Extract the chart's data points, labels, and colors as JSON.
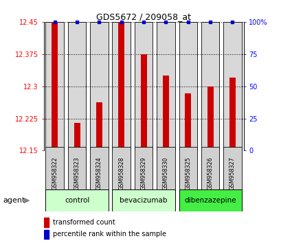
{
  "title": "GDS5672 / 209058_at",
  "samples": [
    "GSM958322",
    "GSM958323",
    "GSM958324",
    "GSM958328",
    "GSM958329",
    "GSM958330",
    "GSM958325",
    "GSM958326",
    "GSM958327"
  ],
  "red_values": [
    12.45,
    12.215,
    12.262,
    12.45,
    12.375,
    12.325,
    12.283,
    12.3,
    12.32
  ],
  "blue_values": [
    100,
    100,
    100,
    100,
    100,
    100,
    100,
    100,
    100
  ],
  "ymin": 12.15,
  "ymax": 12.45,
  "yticks": [
    12.15,
    12.225,
    12.3,
    12.375,
    12.45
  ],
  "y2ticks": [
    0,
    25,
    50,
    75,
    100
  ],
  "groups": [
    {
      "label": "control",
      "indices": [
        0,
        1,
        2
      ],
      "color": "#ccffcc"
    },
    {
      "label": "bevacizumab",
      "indices": [
        3,
        4,
        5
      ],
      "color": "#ccffcc"
    },
    {
      "label": "dibenzazepine",
      "indices": [
        6,
        7,
        8
      ],
      "color": "#44ee44"
    }
  ],
  "bar_color": "#cc0000",
  "dot_color": "#0000cc",
  "background_bar": "#d8d8d8",
  "legend_red": "transformed count",
  "legend_blue": "percentile rank within the sample"
}
